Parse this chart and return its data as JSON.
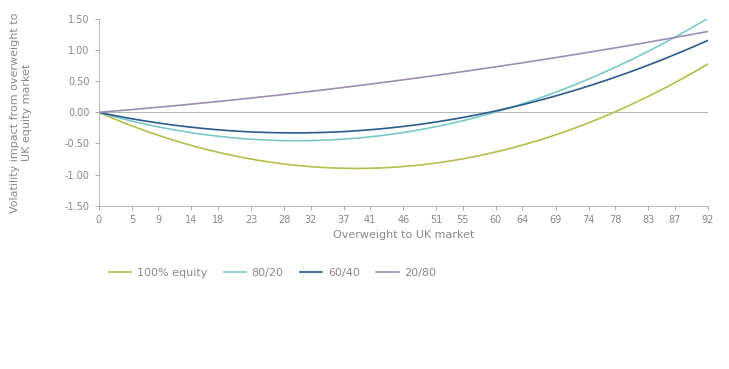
{
  "x_ticks": [
    0,
    5,
    9,
    14,
    18,
    23,
    28,
    32,
    37,
    41,
    46,
    51,
    55,
    60,
    64,
    69,
    74,
    78,
    83,
    87,
    92
  ],
  "x_max": 92,
  "ylim": [
    -1.5,
    1.5
  ],
  "yticks": [
    -1.5,
    -1.0,
    -0.5,
    0.0,
    0.5,
    1.0,
    1.5
  ],
  "xlabel": "Overweight to UK market",
  "ylabel": "Volatility impact from overweight to\nUK equity market",
  "series": [
    {
      "label": "100% equity",
      "color": "#b5bd4b",
      "a": 0.000595,
      "b": -0.0463
    },
    {
      "label": "80/20",
      "color": "#7bc8c8",
      "a": 0.00051,
      "b": -0.0305
    },
    {
      "label": "60/40",
      "color": "#2a5b8c",
      "a": 0.00038,
      "b": -0.0224
    },
    {
      "label": "20/80",
      "color": "#9b8db5",
      "a": 6e-05,
      "b": 0.0086
    }
  ],
  "background_color": "#ffffff",
  "axis_color": "#aaaaaa",
  "tick_color": "#888888",
  "fontsize_label": 8,
  "fontsize_tick": 7,
  "fontsize_legend": 8
}
